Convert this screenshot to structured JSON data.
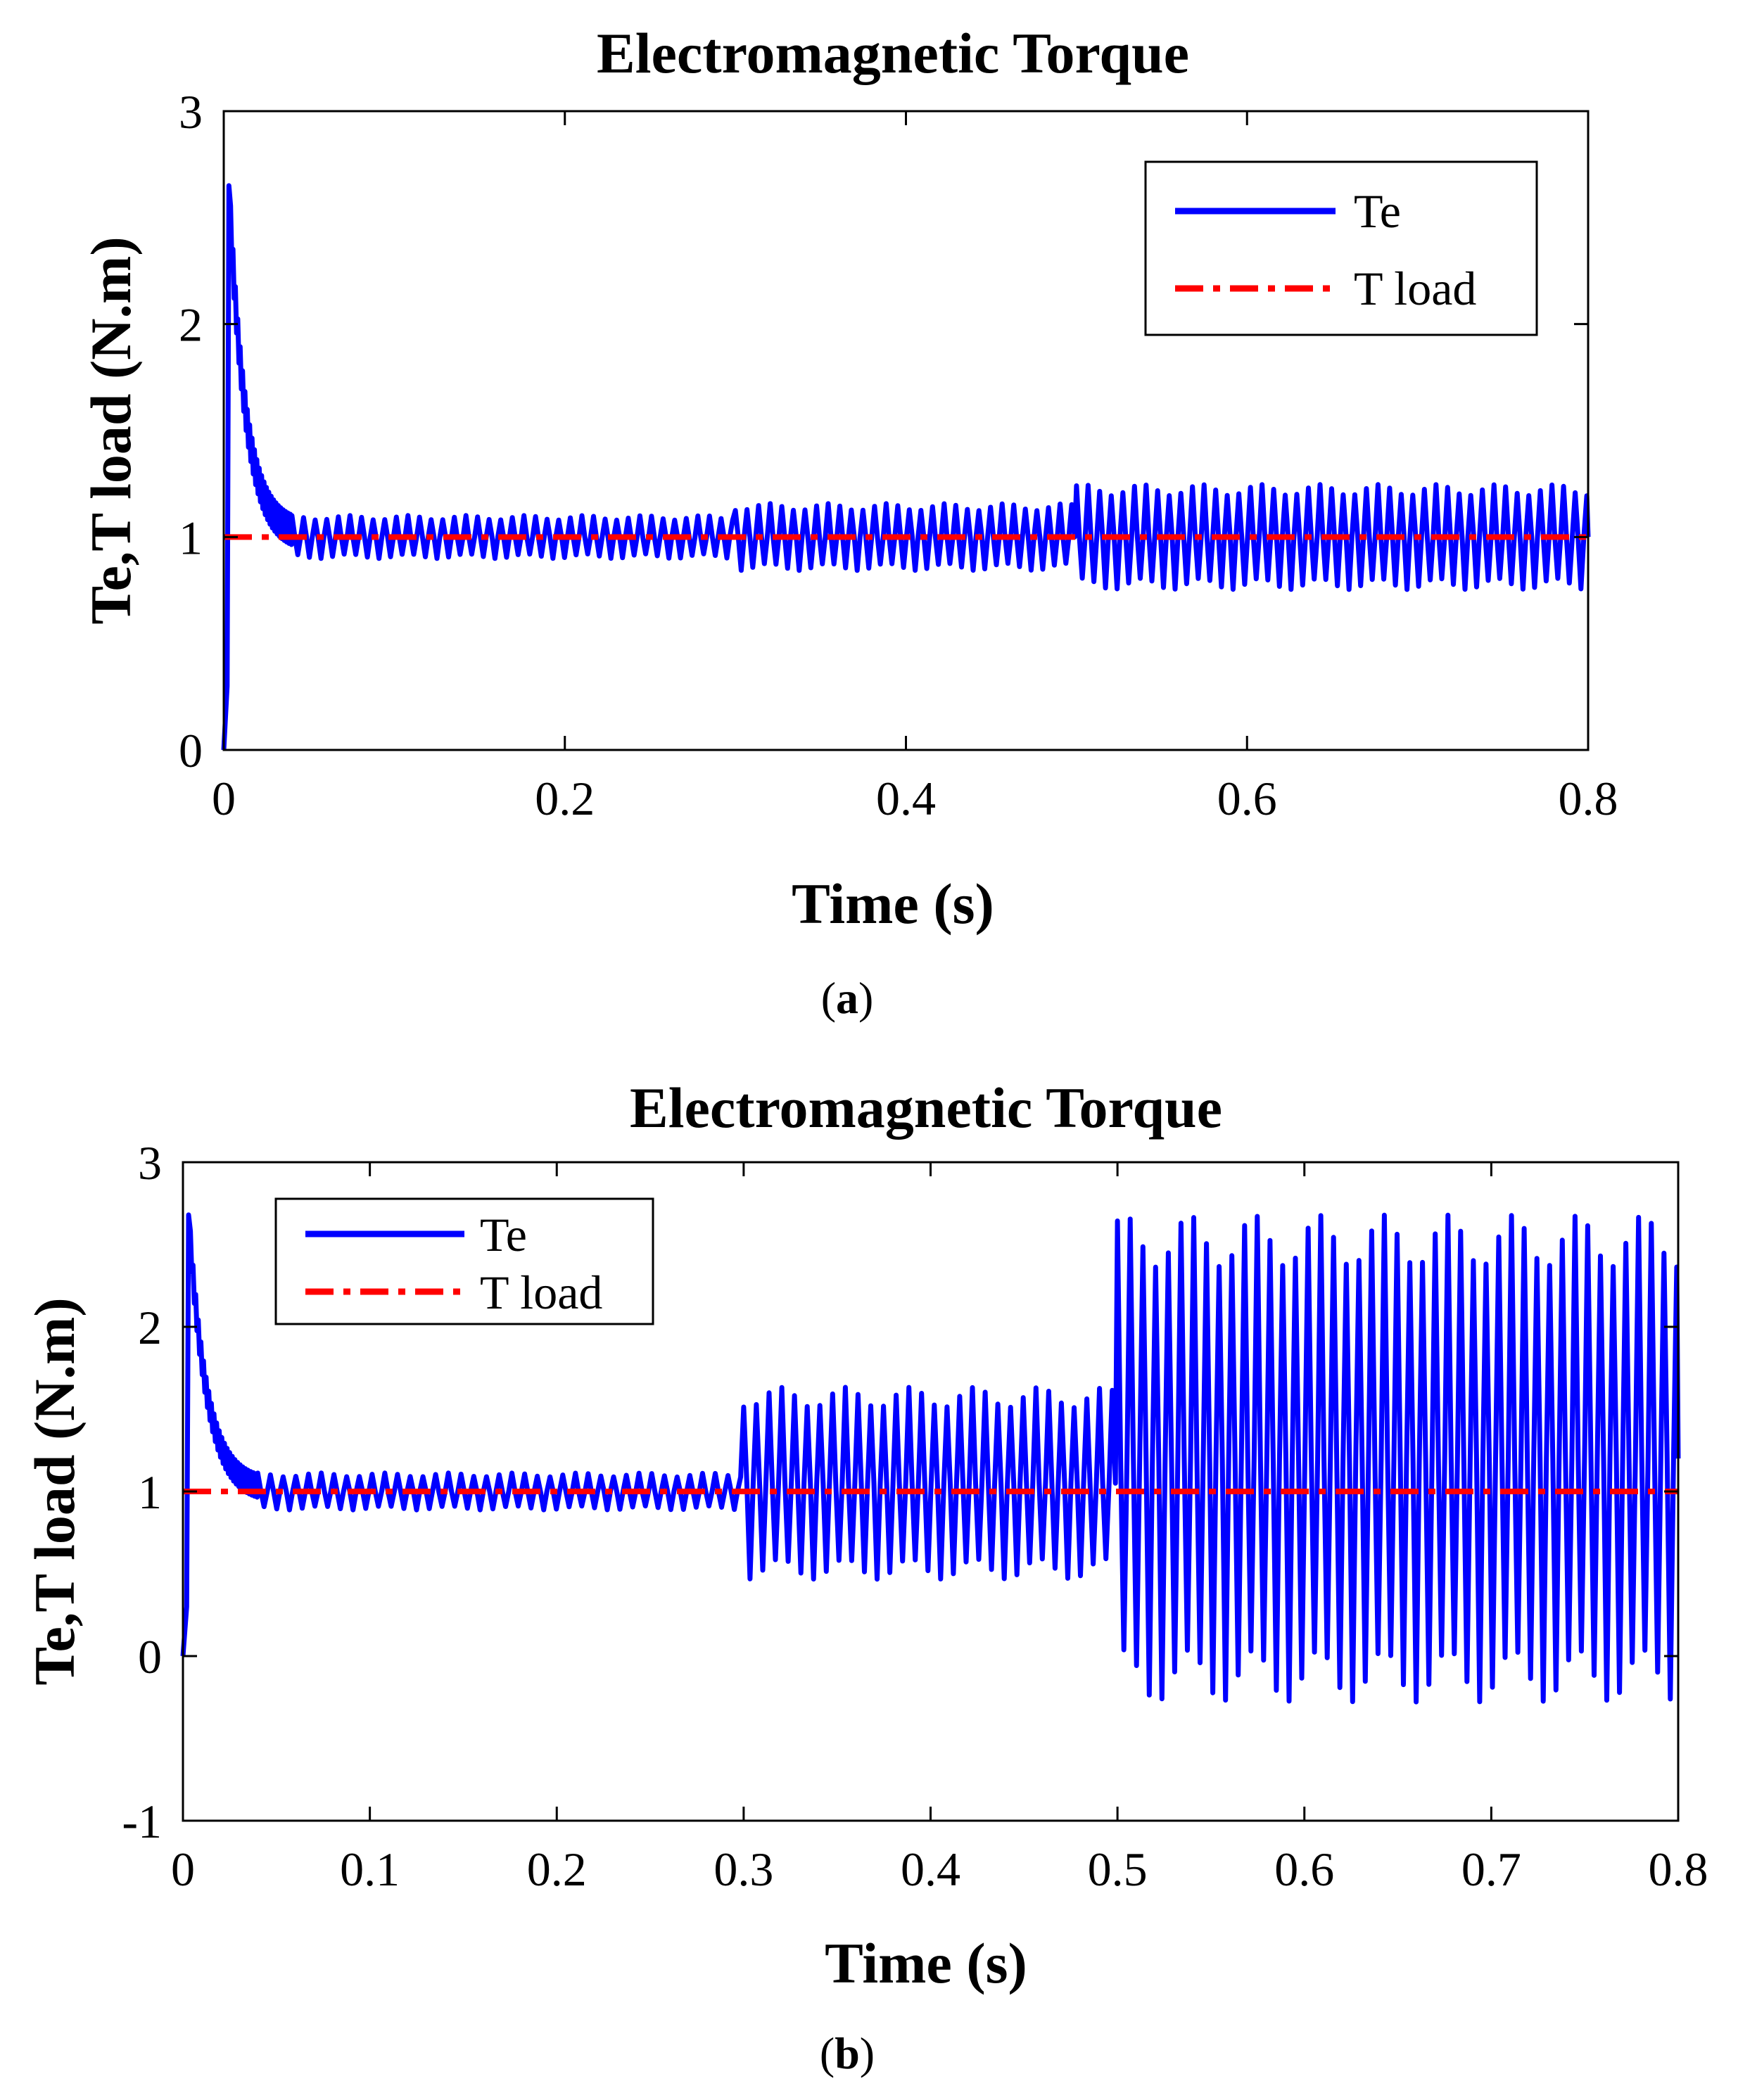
{
  "colors": {
    "te": "#0000ff",
    "tload": "#ff0000",
    "axis": "#000000"
  },
  "chart_data": [
    {
      "id": "a",
      "type": "line",
      "title": "Electromagnetic Torque",
      "xlabel": "Time (s)",
      "ylabel": "Te,T load (N.m)",
      "xlim": [
        0,
        0.8
      ],
      "ylim": [
        0,
        3
      ],
      "xticks": [
        0,
        0.2,
        0.4,
        0.6,
        0.8
      ],
      "xtick_labels": [
        "0",
        "0.2",
        "0.4",
        "0.6",
        "0.8"
      ],
      "yticks": [
        0,
        1,
        2,
        3
      ],
      "ytick_labels": [
        "0",
        "1",
        "2",
        "3"
      ],
      "legend": {
        "position": "top-right",
        "entries": [
          "Te",
          "T load"
        ]
      },
      "caption": {
        "open": "(",
        "letter": "a",
        "close": ")"
      },
      "series": [
        {
          "name": "Te",
          "style": "solid",
          "color": "#0000ff",
          "peak": 2.65,
          "settle_value": 1.0,
          "segments": [
            {
              "t_start": 0.04,
              "t_end": 0.3,
              "center": 1.0,
              "amplitude": 0.09
            },
            {
              "t_start": 0.3,
              "t_end": 0.5,
              "center": 1.0,
              "amplitude": 0.14
            },
            {
              "t_start": 0.5,
              "t_end": 0.8,
              "center": 1.0,
              "amplitude": 0.22
            }
          ]
        },
        {
          "name": "T load",
          "style": "dash-dot",
          "color": "#ff0000",
          "value": 1.0
        }
      ]
    },
    {
      "id": "b",
      "type": "line",
      "title": "Electromagnetic Torque",
      "xlabel": "Time (s)",
      "ylabel": "Te,T load (N.m)",
      "xlim": [
        0,
        0.8
      ],
      "ylim": [
        -1,
        3
      ],
      "xticks": [
        0,
        0.1,
        0.2,
        0.3,
        0.4,
        0.5,
        0.6,
        0.7,
        0.8
      ],
      "xtick_labels": [
        "0",
        "0.1",
        "0.2",
        "0.3",
        "0.4",
        "0.5",
        "0.6",
        "0.7",
        "0.8"
      ],
      "yticks": [
        -1,
        0,
        1,
        2,
        3
      ],
      "ytick_labels": [
        "-1",
        "0",
        "1",
        "2",
        "3"
      ],
      "legend": {
        "position": "top-left",
        "entries": [
          "Te",
          "T load"
        ]
      },
      "caption": {
        "open": "(",
        "letter": "b",
        "close": ")"
      },
      "series": [
        {
          "name": "Te",
          "style": "solid",
          "color": "#0000ff",
          "peak": 2.68,
          "settle_value": 1.0,
          "segments": [
            {
              "t_start": 0.04,
              "t_end": 0.3,
              "center": 1.0,
              "amplitude": 0.1
            },
            {
              "t_start": 0.3,
              "t_end": 0.5,
              "center": 1.05,
              "amplitude": 0.52
            },
            {
              "t_start": 0.5,
              "t_end": 0.8,
              "center": 1.2,
              "amplitude": 1.32
            }
          ]
        },
        {
          "name": "T load",
          "style": "dash-dot",
          "color": "#ff0000",
          "value": 1.0
        }
      ]
    }
  ]
}
